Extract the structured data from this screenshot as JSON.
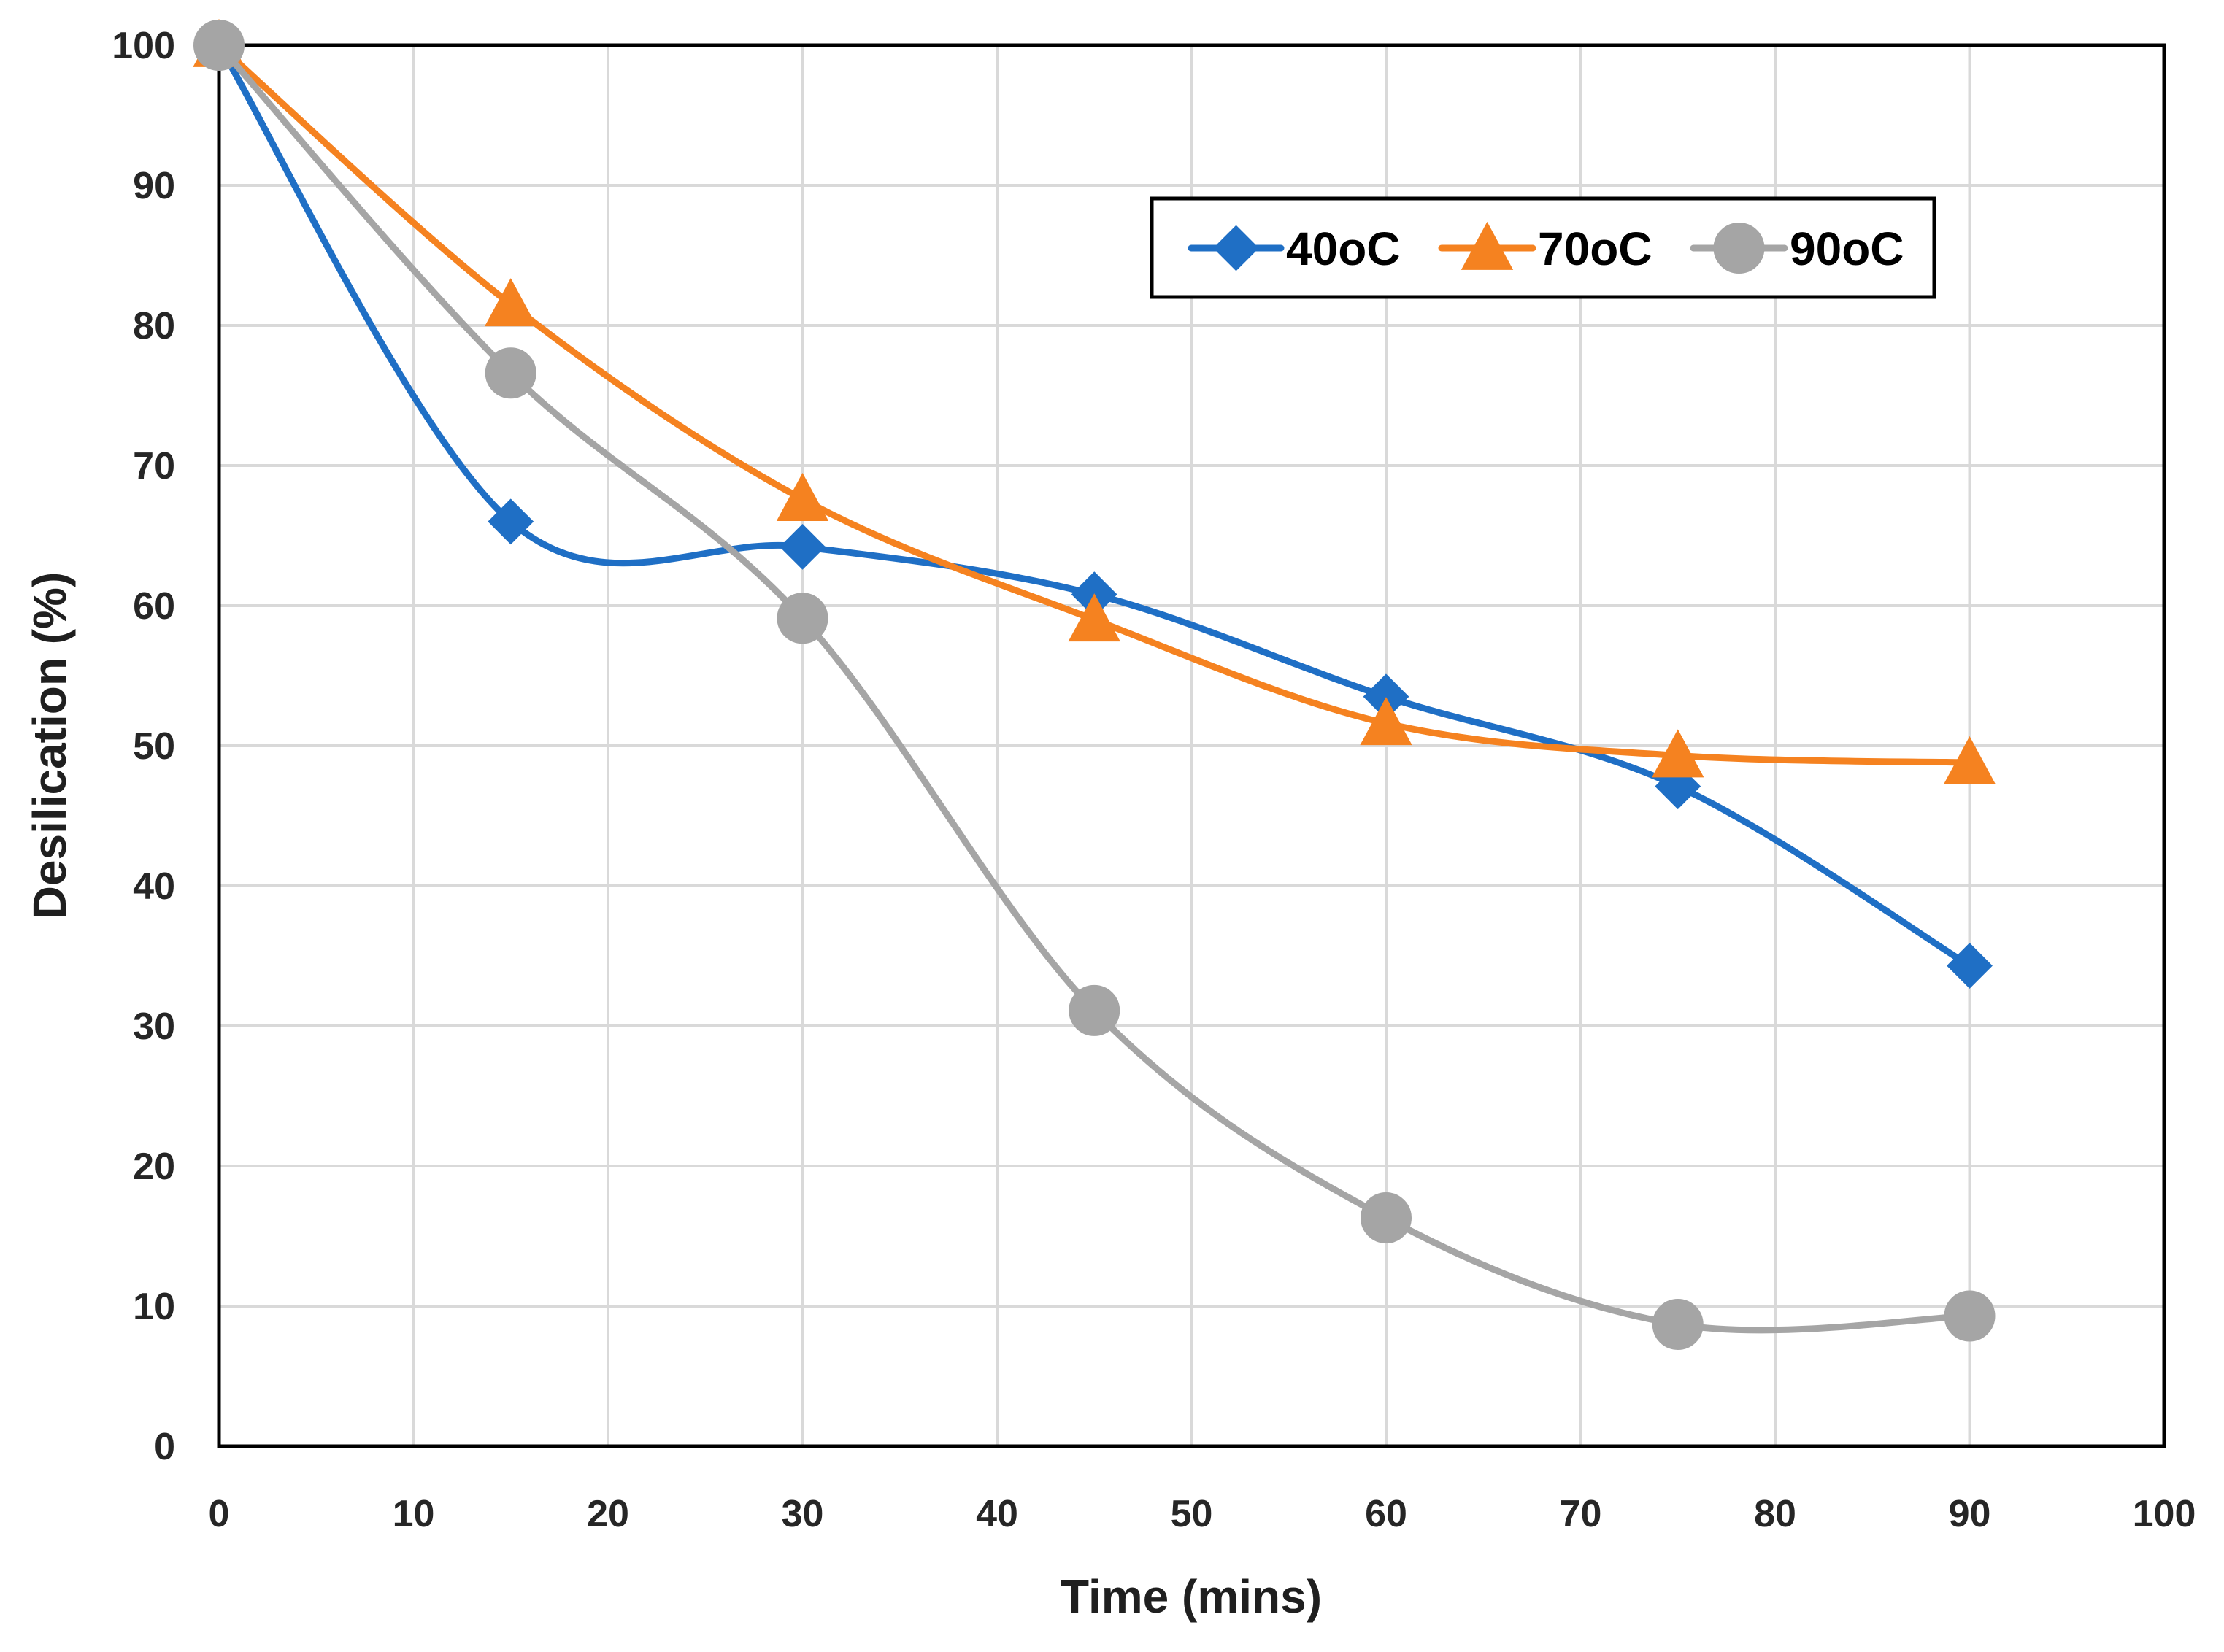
{
  "chart_data": {
    "type": "line",
    "title": "",
    "xlabel": "Time (mins)",
    "ylabel": "Desilication (%)",
    "xlim": [
      0,
      100
    ],
    "ylim": [
      0,
      100
    ],
    "x_ticks": [
      0,
      10,
      20,
      30,
      40,
      50,
      60,
      70,
      80,
      90,
      100
    ],
    "y_ticks": [
      0,
      10,
      20,
      30,
      40,
      50,
      60,
      70,
      80,
      90,
      100
    ],
    "grid": true,
    "legend_position": "top-right",
    "smooth": true,
    "series": [
      {
        "name": "40oC",
        "marker": "diamond",
        "color": "#1F6FC5",
        "x": [
          0,
          15,
          30,
          45,
          60,
          75,
          90
        ],
        "y": [
          100,
          66,
          64.2,
          60.8,
          53.5,
          47.1,
          34.3
        ]
      },
      {
        "name": "70oC",
        "marker": "triangle",
        "color": "#F58220",
        "x": [
          0,
          15,
          30,
          45,
          60,
          75,
          90
        ],
        "y": [
          100,
          81.5,
          67.6,
          59,
          51.6,
          49.3,
          48.8
        ]
      },
      {
        "name": "90oC",
        "marker": "circle",
        "color": "#A5A5A5",
        "x": [
          0,
          15,
          30,
          45,
          60,
          75,
          90
        ],
        "y": [
          100,
          76.6,
          59.1,
          31.1,
          16.3,
          8.7,
          9.3
        ]
      }
    ]
  }
}
